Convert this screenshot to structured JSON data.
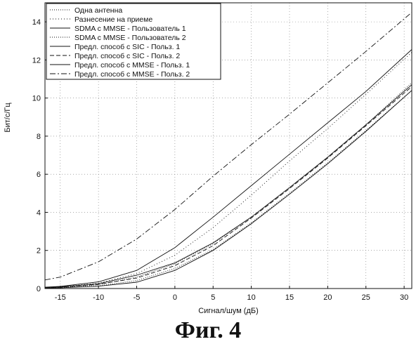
{
  "chart_data": {
    "type": "line",
    "xlabel": "Сигнал/шум (дБ)",
    "ylabel": "Бит/с/Гц",
    "xlim": [
      -17,
      31
    ],
    "ylim": [
      0,
      15
    ],
    "xticks": [
      -15,
      -10,
      -5,
      0,
      5,
      10,
      15,
      20,
      25,
      30
    ],
    "yticks": [
      0,
      2,
      4,
      6,
      8,
      10,
      12,
      14
    ],
    "grid": true,
    "legend_position": "top-left",
    "series": [
      {
        "name": "Одна антенна",
        "dash": "1,2",
        "x": [
          -17,
          -15,
          -10,
          -5,
          0,
          5,
          10,
          15,
          20,
          25,
          31
        ],
        "y": [
          0.03,
          0.04,
          0.14,
          0.42,
          1.05,
          2.05,
          3.45,
          5.0,
          6.6,
          8.3,
          10.4
        ]
      },
      {
        "name": "Разнесение на приеме",
        "dash": "1,3",
        "x": [
          -17,
          -15,
          -10,
          -5,
          0,
          5,
          10,
          15,
          20,
          25,
          31
        ],
        "y": [
          0.06,
          0.09,
          0.28,
          0.78,
          1.75,
          3.2,
          4.9,
          6.7,
          8.4,
          10.2,
          12.4
        ]
      },
      {
        "name": "SDMA с MMSE - Пользователь 1",
        "dash": "",
        "x": [
          -17,
          -15,
          -10,
          -5,
          0,
          5,
          10,
          15,
          20,
          25,
          31
        ],
        "y": [
          0.03,
          0.04,
          0.12,
          0.33,
          0.95,
          2.0,
          3.4,
          4.95,
          6.55,
          8.25,
          10.4
        ]
      },
      {
        "name": "SDMA с MMSE - Пользователь 2",
        "dash": "1,2",
        "x": [
          -17,
          -15,
          -10,
          -5,
          0,
          5,
          10,
          15,
          20,
          25,
          31
        ],
        "y": [
          0.04,
          0.06,
          0.2,
          0.6,
          1.3,
          2.35,
          3.75,
          5.3,
          6.9,
          8.6,
          10.8
        ]
      },
      {
        "name": "Предл. способ с SIC - Польз. 1",
        "dash": "",
        "x": [
          -17,
          -15,
          -10,
          -5,
          0,
          5,
          10,
          15,
          20,
          25,
          31
        ],
        "y": [
          0.05,
          0.08,
          0.25,
          0.7,
          1.35,
          2.4,
          3.75,
          5.3,
          6.9,
          8.6,
          10.7
        ]
      },
      {
        "name": "Предл. способ с SIC - Польз. 2",
        "dash": "6,3",
        "x": [
          -17,
          -15,
          -10,
          -5,
          0,
          5,
          10,
          15,
          20,
          25,
          31
        ],
        "y": [
          0.05,
          0.07,
          0.22,
          0.55,
          1.2,
          2.25,
          3.7,
          5.25,
          6.85,
          8.55,
          10.6
        ]
      },
      {
        "name": "Предл. способ с MMSE - Польз. 1",
        "dash": "",
        "x": [
          -17,
          -15,
          -10,
          -5,
          0,
          5,
          10,
          15,
          20,
          25,
          31
        ],
        "y": [
          0.07,
          0.11,
          0.35,
          0.95,
          2.15,
          3.75,
          5.4,
          7.05,
          8.7,
          10.35,
          12.55
        ]
      },
      {
        "name": "Предл. способ с MMSE - Польз. 2",
        "dash": "8,3,2,3",
        "x": [
          -17,
          -15,
          -10,
          -5,
          0,
          5,
          10,
          15,
          20,
          25,
          31
        ],
        "y": [
          0.45,
          0.6,
          1.4,
          2.6,
          4.15,
          5.9,
          7.55,
          9.15,
          10.8,
          12.45,
          14.5
        ]
      }
    ]
  },
  "caption": "Фиг. 4"
}
